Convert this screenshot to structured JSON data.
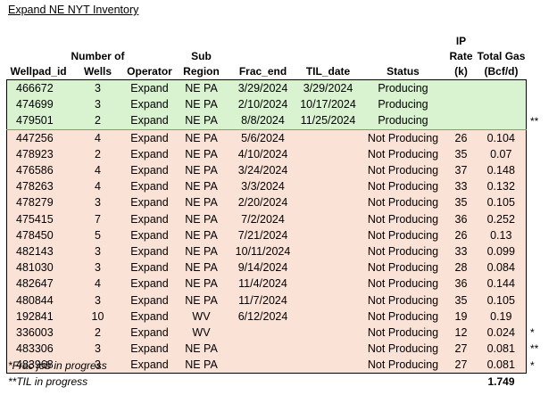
{
  "title": "Expand NE NYT Inventory",
  "headers": {
    "wellpad_id": "Wellpad_id",
    "wells_line1": "Number of",
    "wells_line2": "Wells",
    "operator": "Operator",
    "sub_region": "Sub Region",
    "frac_end": "Frac_end",
    "til_date": "TIL_date",
    "status": "Status",
    "ip_line1": "IP Rate",
    "ip_line2": "(k)",
    "gas_line1": "Total Gas",
    "gas_line2": "(Bcf/d)"
  },
  "rows": [
    {
      "id": "466672",
      "wells": "3",
      "operator": "Expand",
      "region": "NE PA",
      "frac": "3/29/2024",
      "til": "3/29/2024",
      "status": "Producing",
      "ip": "",
      "gas": "",
      "mark": ""
    },
    {
      "id": "474699",
      "wells": "3",
      "operator": "Expand",
      "region": "NE PA",
      "frac": "2/10/2024",
      "til": "10/17/2024",
      "status": "Producing",
      "ip": "",
      "gas": "",
      "mark": ""
    },
    {
      "id": "479501",
      "wells": "2",
      "operator": "Expand",
      "region": "NE PA",
      "frac": "8/8/2024",
      "til": "11/25/2024",
      "status": "Producing",
      "ip": "",
      "gas": "",
      "mark": "**"
    },
    {
      "id": "447256",
      "wells": "4",
      "operator": "Expand",
      "region": "NE PA",
      "frac": "5/6/2024",
      "til": "",
      "status": "Not Producing",
      "ip": "26",
      "gas": "0.104",
      "mark": ""
    },
    {
      "id": "478923",
      "wells": "2",
      "operator": "Expand",
      "region": "NE PA",
      "frac": "4/10/2024",
      "til": "",
      "status": "Not Producing",
      "ip": "35",
      "gas": "0.07",
      "mark": ""
    },
    {
      "id": "476586",
      "wells": "4",
      "operator": "Expand",
      "region": "NE PA",
      "frac": "3/24/2024",
      "til": "",
      "status": "Not Producing",
      "ip": "37",
      "gas": "0.148",
      "mark": ""
    },
    {
      "id": "478263",
      "wells": "4",
      "operator": "Expand",
      "region": "NE PA",
      "frac": "3/3/2024",
      "til": "",
      "status": "Not Producing",
      "ip": "33",
      "gas": "0.132",
      "mark": ""
    },
    {
      "id": "478279",
      "wells": "3",
      "operator": "Expand",
      "region": "NE PA",
      "frac": "2/20/2024",
      "til": "",
      "status": "Not Producing",
      "ip": "35",
      "gas": "0.105",
      "mark": ""
    },
    {
      "id": "475415",
      "wells": "7",
      "operator": "Expand",
      "region": "NE PA",
      "frac": "7/2/2024",
      "til": "",
      "status": "Not Producing",
      "ip": "36",
      "gas": "0.252",
      "mark": ""
    },
    {
      "id": "478450",
      "wells": "5",
      "operator": "Expand",
      "region": "NE PA",
      "frac": "7/21/2024",
      "til": "",
      "status": "Not Producing",
      "ip": "26",
      "gas": "0.13",
      "mark": ""
    },
    {
      "id": "482143",
      "wells": "3",
      "operator": "Expand",
      "region": "NE PA",
      "frac": "10/11/2024",
      "til": "",
      "status": "Not Producing",
      "ip": "33",
      "gas": "0.099",
      "mark": ""
    },
    {
      "id": "481030",
      "wells": "3",
      "operator": "Expand",
      "region": "NE PA",
      "frac": "9/14/2024",
      "til": "",
      "status": "Not Producing",
      "ip": "28",
      "gas": "0.084",
      "mark": ""
    },
    {
      "id": "482647",
      "wells": "4",
      "operator": "Expand",
      "region": "NE PA",
      "frac": "11/4/2024",
      "til": "",
      "status": "Not Producing",
      "ip": "36",
      "gas": "0.144",
      "mark": ""
    },
    {
      "id": "480844",
      "wells": "3",
      "operator": "Expand",
      "region": "NE PA",
      "frac": "11/7/2024",
      "til": "",
      "status": "Not Producing",
      "ip": "35",
      "gas": "0.105",
      "mark": ""
    },
    {
      "id": "192841",
      "wells": "10",
      "operator": "Expand",
      "region": "WV",
      "frac": "6/12/2024",
      "til": "",
      "status": "Not Producing",
      "ip": "19",
      "gas": "0.19",
      "mark": ""
    },
    {
      "id": "336003",
      "wells": "2",
      "operator": "Expand",
      "region": "WV",
      "frac": "",
      "til": "",
      "status": "Not Producing",
      "ip": "12",
      "gas": "0.024",
      "mark": "*"
    },
    {
      "id": "483306",
      "wells": "3",
      "operator": "Expand",
      "region": "NE PA",
      "frac": "",
      "til": "",
      "status": "Not Producing",
      "ip": "27",
      "gas": "0.081",
      "mark": "**"
    },
    {
      "id": "483968",
      "wells": "3",
      "operator": "Expand",
      "region": "NE PA",
      "frac": "",
      "til": "",
      "status": "Not Producing",
      "ip": "27",
      "gas": "0.081",
      "mark": "*"
    }
  ],
  "total_gas": "1.749",
  "notes": {
    "frac": "*Frac job in progress",
    "til": "**TIL in progress"
  },
  "colors": {
    "producing_fill": "#d9f2d0",
    "not_producing_fill": "#fbe2d6"
  }
}
